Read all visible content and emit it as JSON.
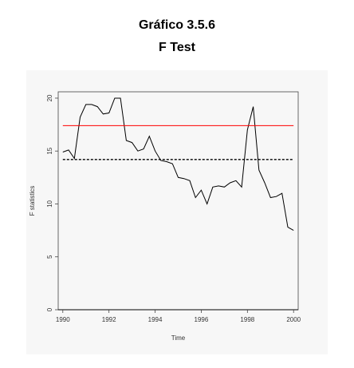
{
  "figure": {
    "title": "Gráfico 3.5.6",
    "subtitle": "F Test"
  },
  "chart_data": {
    "type": "line",
    "title": "Gráfico 3.5.6",
    "subtitle": "F Test",
    "xlabel": "Time",
    "ylabel": "F statistics",
    "xlim": [
      1989.8,
      2000.2
    ],
    "ylim": [
      0,
      20.6
    ],
    "xticks": [
      1990,
      1992,
      1994,
      1996,
      1998,
      2000
    ],
    "yticks": [
      0,
      5,
      10,
      15,
      20
    ],
    "grid": false,
    "legend": "none",
    "series": [
      {
        "color": "#000000",
        "style": "solid",
        "x": [
          1990.0,
          1990.25,
          1990.5,
          1990.75,
          1991.0,
          1991.25,
          1991.5,
          1991.75,
          1992.0,
          1992.25,
          1992.5,
          1992.75,
          1993.0,
          1993.25,
          1993.5,
          1993.75,
          1994.0,
          1994.25,
          1994.5,
          1994.75,
          1995.0,
          1995.25,
          1995.5,
          1995.75,
          1996.0,
          1996.25,
          1996.5,
          1996.75,
          1997.0,
          1997.25,
          1997.5,
          1997.75,
          1998.0,
          1998.25,
          1998.5,
          1998.75,
          1999.0,
          1999.25,
          1999.5,
          1999.75,
          2000.0
        ],
        "values": [
          14.9,
          15.1,
          14.3,
          18.2,
          19.4,
          19.4,
          19.2,
          18.5,
          18.6,
          20.0,
          20.0,
          16.0,
          15.8,
          15.0,
          15.2,
          16.4,
          15.0,
          14.1,
          14.0,
          13.8,
          12.5,
          12.4,
          12.2,
          10.6,
          11.3,
          10.0,
          11.6,
          11.7,
          11.6,
          12.0,
          12.2,
          11.6,
          17.0,
          19.2,
          13.2,
          12.0,
          10.6,
          10.7,
          11.0,
          7.8,
          7.5
        ]
      },
      {
        "color": "#ff0000",
        "style": "solid",
        "x": [
          1990.0,
          2000.0
        ],
        "values": [
          17.4,
          17.4
        ]
      },
      {
        "color": "#000000",
        "style": "dashed",
        "x": [
          1990.0,
          2000.0
        ],
        "values": [
          14.2,
          14.2
        ]
      }
    ],
    "reference_lines": [
      {
        "orientation": "horizontal",
        "value": 0,
        "color": "#000000"
      }
    ]
  }
}
